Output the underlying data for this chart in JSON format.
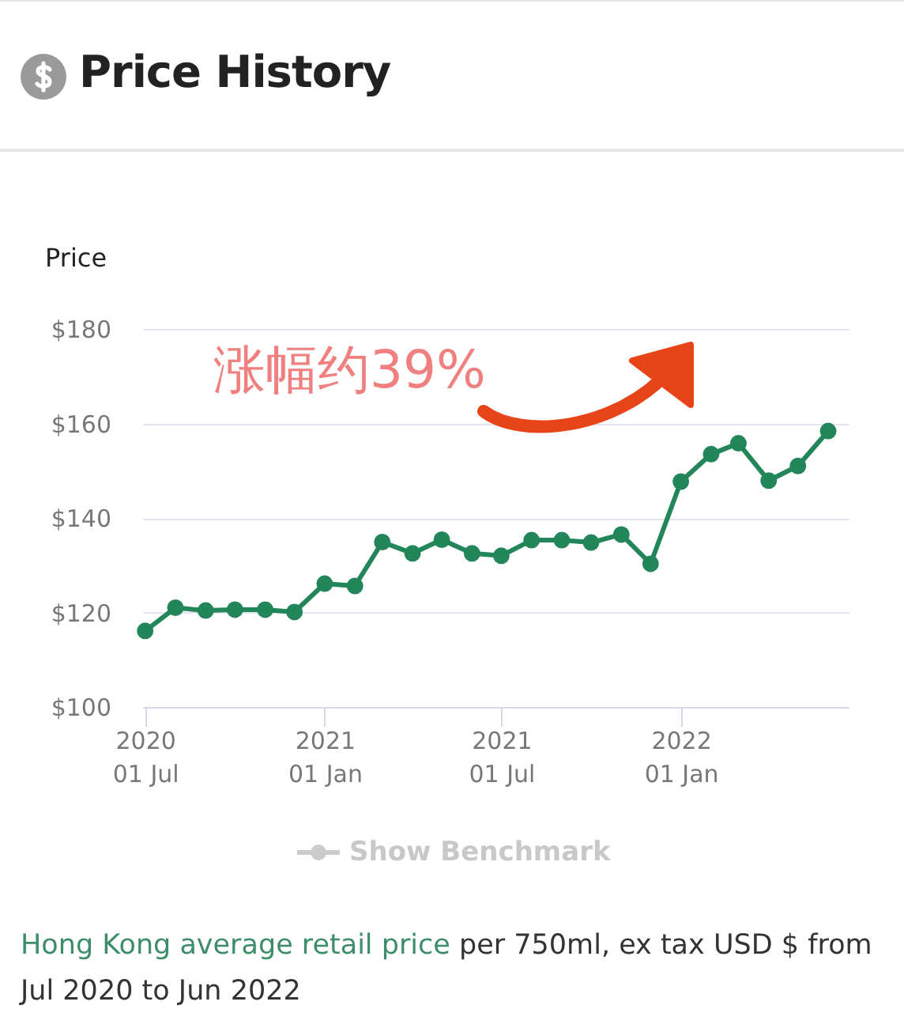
{
  "chart_data": {
    "type": "line",
    "title": "Price History",
    "ylabel": "Price",
    "annotations": [
      "涨幅约39%",
      "Show Benchmark",
      "Hong Kong average retail price",
      "per 750ml, ex tax USD $ from Jul 2020 to Jun 2022"
    ],
    "x": [
      "2020-07",
      "2020-08",
      "2020-09",
      "2020-10",
      "2020-11",
      "2020-12",
      "2021-01",
      "2021-02",
      "2021-03",
      "2021-04",
      "2021-05",
      "2021-06",
      "2021-07",
      "2021-08",
      "2021-09",
      "2021-10",
      "2021-11",
      "2021-12",
      "2022-01",
      "2022-02",
      "2022-03",
      "2022-04",
      "2022-05",
      "2022-06"
    ],
    "series": [
      {
        "color": "#23865a",
        "values": [
          116.1,
          121.0,
          120.4,
          120.6,
          120.6,
          120.1,
          126.1,
          125.6,
          134.9,
          132.5,
          135.4,
          132.5,
          132.0,
          135.3,
          135.3,
          134.8,
          136.5,
          130.3,
          147.7,
          153.5,
          155.8,
          147.9,
          151.0,
          158.4
        ]
      }
    ],
    "xlim": [
      "2020-06-28",
      "2022-06-22"
    ],
    "xticks": [
      {
        "value": "2020-07-01",
        "label": "2020\n01 Jul"
      },
      {
        "value": "2021-01-01",
        "label": "2021\n01 Jan"
      },
      {
        "value": "2021-07-01",
        "label": "2021\n01 Jul"
      },
      {
        "value": "2022-01-01",
        "label": "2022\n01 Jan"
      }
    ],
    "ylim": [
      100,
      180
    ],
    "yticks": [
      {
        "value": 100,
        "label": "$100"
      },
      {
        "value": 120,
        "label": "$120"
      },
      {
        "value": 140,
        "label": "$140"
      },
      {
        "value": 160,
        "label": "$160"
      },
      {
        "value": 180,
        "label": "$180"
      }
    ],
    "grid": "y",
    "marker": "circle",
    "line_style": "solid",
    "legend": false
  }
}
